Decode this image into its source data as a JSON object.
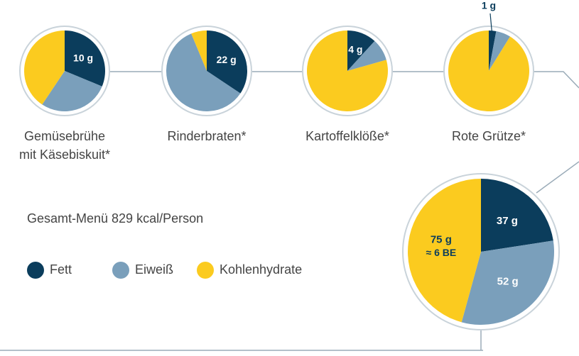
{
  "subtitle": "Gesamt-Menü 829 kcal/Person",
  "legend": {
    "categories": [
      "Fett",
      "Eiweiß",
      "Kohlenhydrate"
    ],
    "colors": [
      "#0b3d5c",
      "#7a9fbb",
      "#fbcb1f"
    ]
  },
  "chart_data": [
    {
      "type": "pie",
      "title": [
        "Gemüsebrühe",
        "mit Käsebiskuit*"
      ],
      "values": [
        10,
        9,
        13
      ],
      "value_labels": [
        "10 g",
        null,
        null
      ]
    },
    {
      "type": "pie",
      "title": [
        "Rinderbraten*"
      ],
      "values": [
        22,
        38,
        4
      ],
      "value_labels": [
        "22 g",
        null,
        null
      ]
    },
    {
      "type": "pie",
      "title": [
        "Kartoffelklöße*"
      ],
      "values": [
        4,
        3,
        27
      ],
      "value_labels": [
        "4 g",
        null,
        null
      ]
    },
    {
      "type": "pie",
      "title": [
        "Rote Grütze*"
      ],
      "values": [
        1,
        2,
        31
      ],
      "value_labels": [
        "1 g",
        null,
        null
      ]
    },
    {
      "type": "pie",
      "values": [
        37,
        52,
        75
      ],
      "value_labels": [
        "37 g",
        "52 g",
        "75 g"
      ],
      "annotation": "≈ 6 BE"
    }
  ]
}
